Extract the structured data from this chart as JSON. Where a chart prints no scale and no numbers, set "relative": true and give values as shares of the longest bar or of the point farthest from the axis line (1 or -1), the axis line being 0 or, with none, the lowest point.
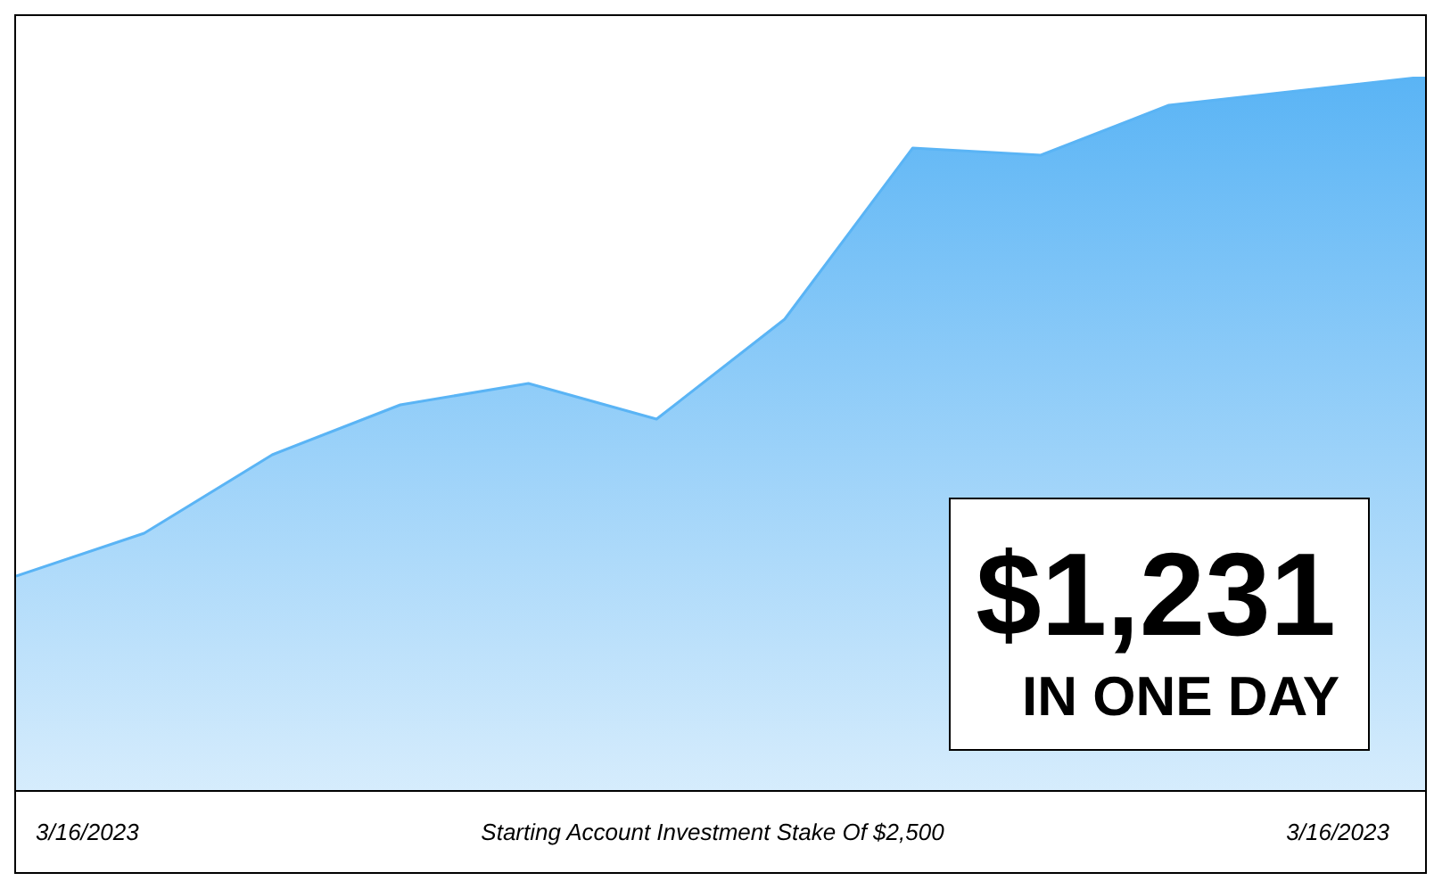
{
  "chart_data": {
    "type": "area",
    "relative": true,
    "categories": [
      null,
      null,
      null,
      null,
      null,
      null,
      null,
      null,
      null,
      null,
      null,
      null
    ],
    "series": [
      {
        "color": "#5ab4f5",
        "values": [
          0.3,
          0.36,
          0.47,
          0.54,
          0.57,
          0.52,
          0.66,
          0.9,
          0.89,
          0.96,
          0.98,
          1
        ]
      }
    ],
    "annotations": [
      "$1,231",
      "IN ONE DAY",
      "3/16/2023",
      "Starting Account Investment Stake Of $2,500",
      "3/16/2023"
    ],
    "legend": false
  }
}
